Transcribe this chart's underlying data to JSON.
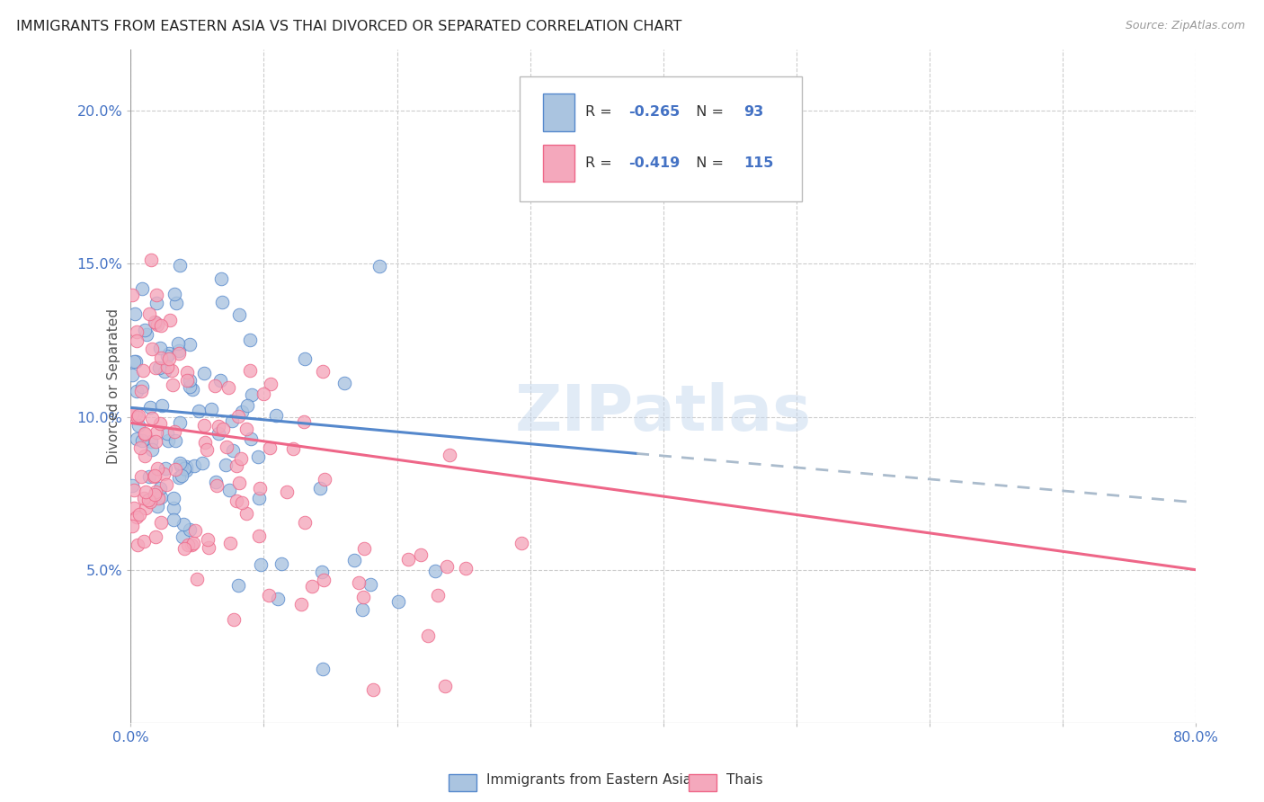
{
  "title": "IMMIGRANTS FROM EASTERN ASIA VS THAI DIVORCED OR SEPARATED CORRELATION CHART",
  "source": "Source: ZipAtlas.com",
  "ylabel": "Divorced or Separated",
  "yticks": [
    "5.0%",
    "10.0%",
    "15.0%",
    "20.0%"
  ],
  "ytick_vals": [
    0.05,
    0.1,
    0.15,
    0.2
  ],
  "xrange": [
    0.0,
    0.8
  ],
  "yrange": [
    0.0,
    0.22
  ],
  "scatter1_color": "#aac4e0",
  "scatter2_color": "#f4a8bc",
  "line1_color": "#5588cc",
  "line2_color": "#ee6688",
  "line1_dashed_color": "#aabbcc",
  "watermark": "ZIPatlas",
  "legend_bottom_label1": "Immigrants from Eastern Asia",
  "legend_bottom_label2": "Thais",
  "background_color": "#ffffff",
  "grid_color": "#cccccc",
  "title_color": "#222222",
  "axis_label_color": "#4472c4",
  "blue_line_start_x": 0.0,
  "blue_line_start_y": 0.103,
  "blue_line_solid_end_x": 0.38,
  "blue_line_solid_end_y": 0.088,
  "blue_line_dash_end_x": 0.8,
  "blue_line_dash_end_y": 0.072,
  "pink_line_start_x": 0.0,
  "pink_line_start_y": 0.098,
  "pink_line_end_x": 0.8,
  "pink_line_end_y": 0.05,
  "r1": "-0.265",
  "n1": "93",
  "r2": "-0.419",
  "n2": "115"
}
